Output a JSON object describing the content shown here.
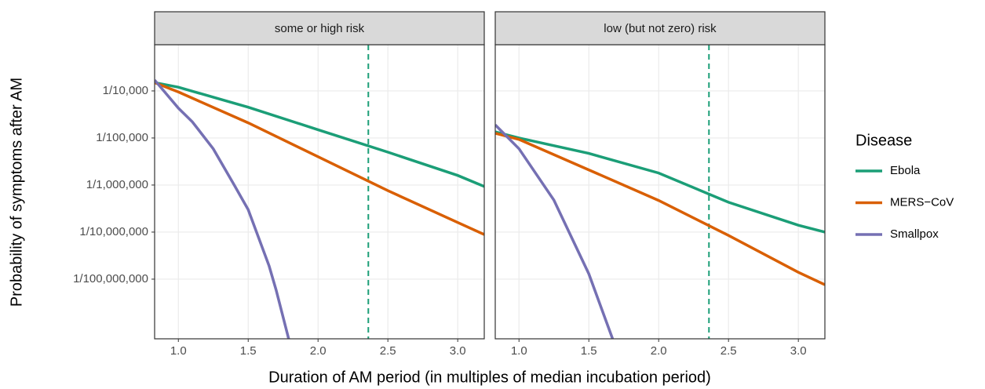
{
  "chart_data": {
    "type": "line",
    "log_y": true,
    "grid": true,
    "x_label": "Duration of AM period (in multiples of median incubation period)",
    "y_label": "Probability of symptoms after AM",
    "legend_title": "Disease",
    "series": [
      {
        "name": "Ebola",
        "color": "#1b9e77"
      },
      {
        "name": "MERS−CoV",
        "color": "#d95f02"
      },
      {
        "name": "Smallpox",
        "color": "#7570b3"
      }
    ],
    "xlim": [
      0.83,
      3.19
    ],
    "xticks": [
      {
        "value": 1,
        "label": "1.0"
      },
      1.5,
      {
        "value": 2,
        "label": "2.0"
      },
      2.5,
      {
        "value": 3,
        "label": "3.0"
      }
    ],
    "ylim": [
      5.4e-10,
      0.00096
    ],
    "yticks": [
      {
        "value": 0.0001,
        "label": "1/10,000"
      },
      {
        "value": 1e-05,
        "label": "1/100,000"
      },
      {
        "value": 1e-06,
        "label": "1/1,000,000"
      },
      {
        "value": 1e-07,
        "label": "1/10,000,000"
      },
      {
        "value": 1e-08,
        "label": "1/100,000,000"
      }
    ],
    "facets": [
      {
        "title": "some or high risk",
        "vline": 2.36,
        "vline_color": "#1b9e77",
        "series": [
          {
            "x": [
              0.83,
              1.0,
              1.5,
              2.0,
              2.5,
              3.0,
              3.19
            ],
            "values": [
              0.00015,
              0.00012,
              4.5e-05,
              1.5e-05,
              5e-06,
              1.6e-06,
              9.3e-07
            ]
          },
          {
            "x": [
              0.83,
              1.0,
              1.5,
              2.0,
              2.5,
              3.0,
              3.19
            ],
            "values": [
              0.00015,
              9.5e-05,
              2.1e-05,
              4e-06,
              7.6e-07,
              1.6e-07,
              8.9e-08
            ]
          },
          {
            "x": [
              0.83,
              1.0,
              1.1,
              1.25,
              1.4,
              1.5,
              1.65,
              1.7,
              1.79
            ],
            "values": [
              0.00017,
              4.3e-05,
              2.2e-05,
              5.9e-06,
              1e-06,
              3e-07,
              1.9e-08,
              5.9e-09,
              5.4e-10
            ]
          }
        ]
      },
      {
        "title": "low (but not zero) risk",
        "vline": 2.36,
        "vline_color": "#1b9e77",
        "series": [
          {
            "x": [
              0.83,
              1.0,
              1.5,
              2.0,
              2.5,
              3.0,
              3.19
            ],
            "values": [
              1.35e-05,
              1e-05,
              4.7e-06,
              1.8e-06,
              4.3e-07,
              1.4e-07,
              1e-07
            ]
          },
          {
            "x": [
              0.83,
              1.0,
              1.5,
              2.0,
              2.5,
              3.0,
              3.19
            ],
            "values": [
              1.26e-05,
              9.3e-06,
              2.1e-06,
              4.7e-07,
              8.5e-08,
              1.4e-08,
              7.6e-09
            ]
          },
          {
            "x": [
              0.83,
              1.0,
              1.25,
              1.5,
              1.67
            ],
            "values": [
              1.9e-05,
              5.9e-06,
              4.8e-07,
              1.3e-08,
              5.4e-10
            ]
          }
        ]
      }
    ]
  }
}
